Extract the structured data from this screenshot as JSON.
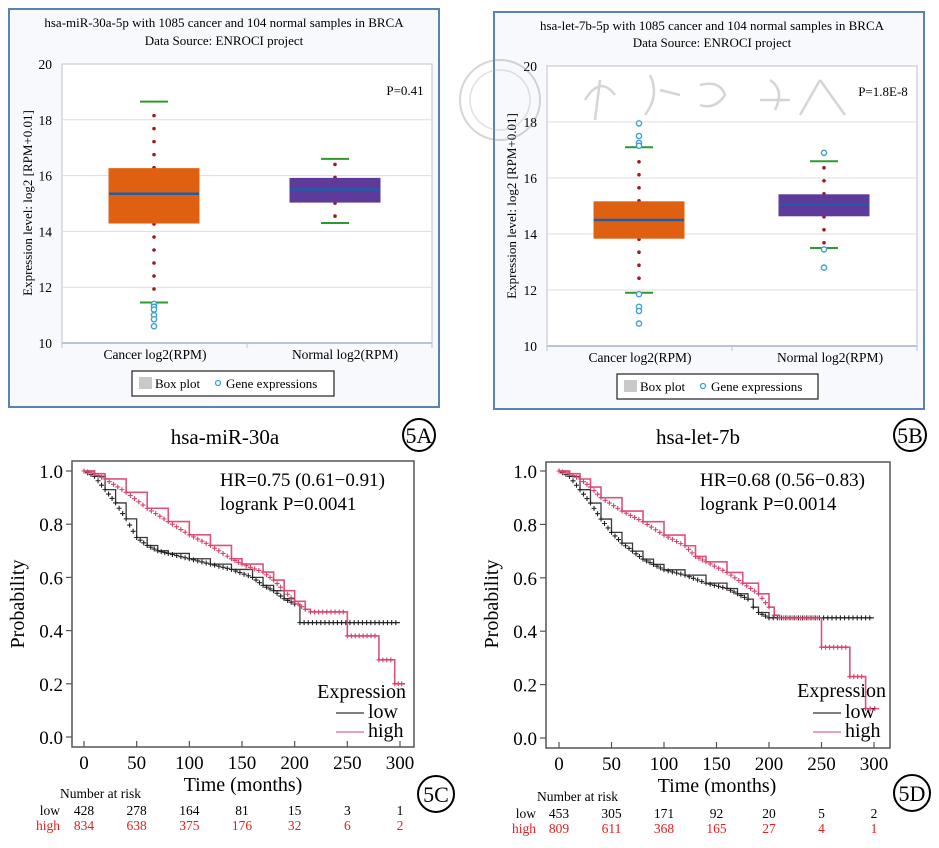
{
  "colors": {
    "cancer_box": "#e06012",
    "normal_box": "#5e3a9a",
    "median": "#1e5fa8",
    "whisker": "#2e9a2e",
    "dots": "#9b1c1c",
    "outlier": "#3aa0d6",
    "km_low": "#222222",
    "km_high": "#d9406a",
    "risk_high": "#e02020",
    "frame": "#5b82b5"
  },
  "panels": {
    "A": {
      "label": "5A",
      "gene": "hsa-miR-30a"
    },
    "B": {
      "label": "5B",
      "gene": "hsa-let-7b"
    },
    "C": {
      "label": "5C"
    },
    "D": {
      "label": "5D"
    }
  },
  "chart_data": [
    {
      "id": "A",
      "type": "box",
      "title": "hsa-miR-30a-5p with 1085 cancer and 104 normal samples in BRCA",
      "subtitle": "Data Source: ENROCI project",
      "ylabel": "Expression level: log2 [RPM+0.01]",
      "ylim": [
        10,
        20
      ],
      "yticks": [
        10,
        12,
        14,
        16,
        18,
        20
      ],
      "grid": true,
      "annotation": "P=0.41",
      "categories": [
        "Cancer log2(RPM)",
        "Normal log2(RPM)"
      ],
      "legend": [
        "Box plot",
        "Gene expressions"
      ],
      "legend_position": "bottom",
      "boxes": [
        {
          "name": "Cancer",
          "whisker_low": 11.45,
          "q1": 14.3,
          "median": 15.35,
          "q3": 16.25,
          "whisker_high": 18.65,
          "outliers": [
            11.4,
            11.3,
            11.2,
            11.0,
            10.85,
            10.6
          ]
        },
        {
          "name": "Normal",
          "whisker_low": 14.3,
          "q1": 15.05,
          "median": 15.5,
          "q3": 15.9,
          "whisker_high": 16.6,
          "outliers": []
        }
      ]
    },
    {
      "id": "B",
      "type": "box",
      "title": "hsa-let-7b-5p with 1085 cancer and 104 normal samples in BRCA",
      "subtitle": "Data Source: ENROCI project",
      "ylabel": "Expression level: log2 [RPM+0.01]",
      "ylim": [
        10,
        20
      ],
      "yticks": [
        10,
        12,
        14,
        16,
        18,
        20
      ],
      "grid": true,
      "annotation": "P=1.8E-8",
      "categories": [
        "Cancer log2(RPM)",
        "Normal log2(RPM)"
      ],
      "legend": [
        "Box plot",
        "Gene expressions"
      ],
      "legend_position": "bottom",
      "boxes": [
        {
          "name": "Cancer",
          "whisker_low": 11.9,
          "q1": 13.85,
          "median": 14.5,
          "q3": 15.15,
          "whisker_high": 17.1,
          "outliers": [
            17.95,
            17.5,
            17.25,
            17.15,
            11.85,
            11.4,
            11.25,
            10.8
          ]
        },
        {
          "name": "Normal",
          "whisker_low": 13.5,
          "q1": 14.65,
          "median": 15.05,
          "q3": 15.4,
          "whisker_high": 16.6,
          "outliers": [
            16.9,
            13.45,
            12.8
          ]
        }
      ]
    },
    {
      "id": "C",
      "type": "line",
      "kind": "kaplan-meier",
      "xlabel": "Time (months)",
      "ylabel": "Probability",
      "xlim": [
        0,
        300
      ],
      "ylim": [
        0,
        1
      ],
      "xticks": [
        0,
        50,
        100,
        150,
        200,
        250,
        300
      ],
      "yticks": [
        "0.0",
        "0.2",
        "0.4",
        "0.6",
        "0.8",
        "1.0"
      ],
      "annotation": [
        "HR=0.75 (0.61−0.91)",
        "logrank P=0.0041"
      ],
      "legend_title": "Expression",
      "legend_position": "bottom-right",
      "series": [
        {
          "name": "low",
          "points": [
            [
              0,
              1.0
            ],
            [
              10,
              0.98
            ],
            [
              20,
              0.93
            ],
            [
              30,
              0.88
            ],
            [
              40,
              0.82
            ],
            [
              50,
              0.75
            ],
            [
              60,
              0.72
            ],
            [
              70,
              0.7
            ],
            [
              80,
              0.69
            ],
            [
              100,
              0.67
            ],
            [
              120,
              0.65
            ],
            [
              140,
              0.63
            ],
            [
              160,
              0.6
            ],
            [
              170,
              0.57
            ],
            [
              180,
              0.55
            ],
            [
              190,
              0.52
            ],
            [
              200,
              0.5
            ],
            [
              205,
              0.47
            ],
            [
              205,
              0.43
            ],
            [
              300,
              0.43
            ]
          ]
        },
        {
          "name": "high",
          "points": [
            [
              0,
              1.0
            ],
            [
              10,
              0.99
            ],
            [
              20,
              0.97
            ],
            [
              40,
              0.92
            ],
            [
              60,
              0.86
            ],
            [
              80,
              0.81
            ],
            [
              100,
              0.76
            ],
            [
              120,
              0.72
            ],
            [
              140,
              0.67
            ],
            [
              150,
              0.65
            ],
            [
              170,
              0.62
            ],
            [
              180,
              0.59
            ],
            [
              190,
              0.55
            ],
            [
              200,
              0.51
            ],
            [
              210,
              0.48
            ],
            [
              215,
              0.47
            ],
            [
              250,
              0.47
            ],
            [
              250,
              0.38
            ],
            [
              280,
              0.38
            ],
            [
              280,
              0.29
            ],
            [
              295,
              0.29
            ],
            [
              295,
              0.2
            ],
            [
              305,
              0.2
            ]
          ]
        }
      ],
      "risk_table": {
        "title": "Number at risk",
        "rows": [
          {
            "name": "low",
            "values": [
              428,
              278,
              164,
              81,
              15,
              3,
              1
            ]
          },
          {
            "name": "high",
            "values": [
              834,
              638,
              375,
              176,
              32,
              6,
              2
            ]
          }
        ]
      }
    },
    {
      "id": "D",
      "type": "line",
      "kind": "kaplan-meier",
      "xlabel": "Time (months)",
      "ylabel": "Probability",
      "xlim": [
        0,
        300
      ],
      "ylim": [
        0,
        1
      ],
      "xticks": [
        0,
        50,
        100,
        150,
        200,
        250,
        300
      ],
      "yticks": [
        "0.0",
        "0.2",
        "0.4",
        "0.6",
        "0.8",
        "1.0"
      ],
      "annotation": [
        "HR=0.68 (0.56−0.83)",
        "logrank P=0.0014"
      ],
      "legend_title": "Expression",
      "legend_position": "bottom-right",
      "series": [
        {
          "name": "low",
          "points": [
            [
              0,
              1.0
            ],
            [
              10,
              0.98
            ],
            [
              20,
              0.93
            ],
            [
              30,
              0.88
            ],
            [
              40,
              0.82
            ],
            [
              50,
              0.77
            ],
            [
              60,
              0.73
            ],
            [
              70,
              0.7
            ],
            [
              80,
              0.67
            ],
            [
              90,
              0.65
            ],
            [
              100,
              0.63
            ],
            [
              120,
              0.61
            ],
            [
              140,
              0.58
            ],
            [
              160,
              0.56
            ],
            [
              170,
              0.54
            ],
            [
              180,
              0.52
            ],
            [
              185,
              0.49
            ],
            [
              190,
              0.47
            ],
            [
              200,
              0.45
            ],
            [
              300,
              0.45
            ]
          ]
        },
        {
          "name": "high",
          "points": [
            [
              0,
              1.0
            ],
            [
              10,
              0.99
            ],
            [
              20,
              0.97
            ],
            [
              30,
              0.94
            ],
            [
              40,
              0.9
            ],
            [
              60,
              0.85
            ],
            [
              80,
              0.81
            ],
            [
              100,
              0.76
            ],
            [
              120,
              0.72
            ],
            [
              130,
              0.68
            ],
            [
              140,
              0.66
            ],
            [
              160,
              0.62
            ],
            [
              175,
              0.58
            ],
            [
              190,
              0.54
            ],
            [
              200,
              0.49
            ],
            [
              205,
              0.46
            ],
            [
              210,
              0.45
            ],
            [
              250,
              0.45
            ],
            [
              250,
              0.34
            ],
            [
              277,
              0.34
            ],
            [
              277,
              0.23
            ],
            [
              292,
              0.23
            ],
            [
              292,
              0.11
            ],
            [
              305,
              0.11
            ]
          ]
        }
      ],
      "risk_table": {
        "title": "Number at risk",
        "rows": [
          {
            "name": "low",
            "values": [
              453,
              305,
              171,
              92,
              20,
              5,
              2
            ]
          },
          {
            "name": "high",
            "values": [
              809,
              611,
              368,
              165,
              27,
              4,
              1
            ]
          }
        ]
      }
    }
  ]
}
